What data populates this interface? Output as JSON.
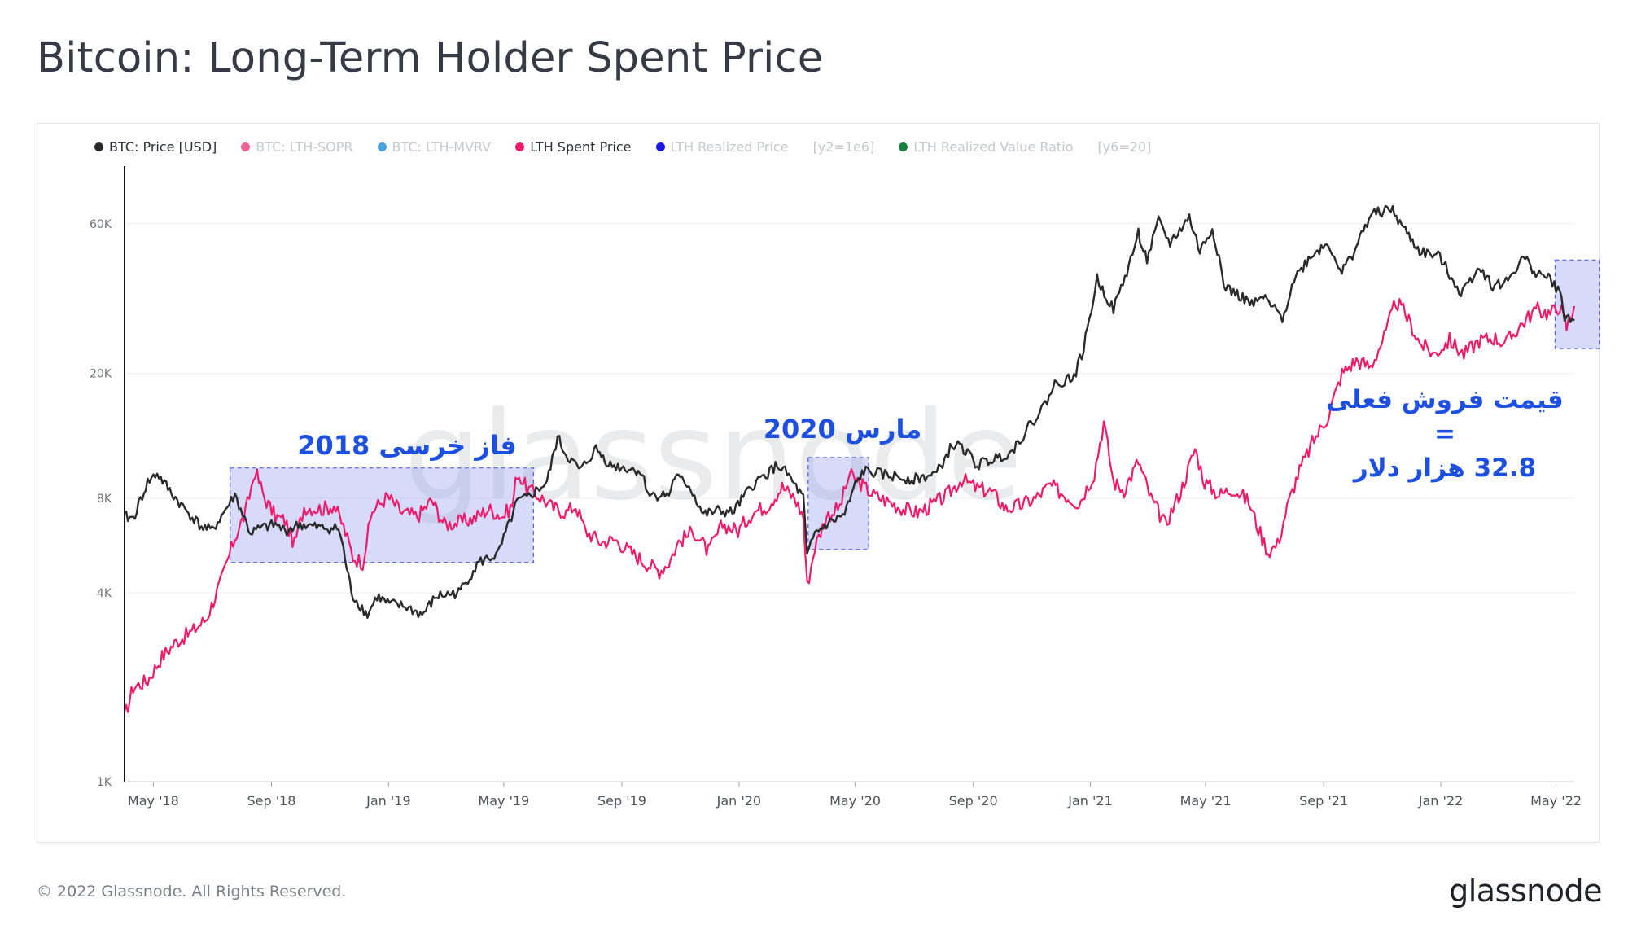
{
  "title": "Bitcoin: Long-Term Holder Spent Price",
  "legend": [
    {
      "label": "BTC: Price [USD]",
      "color": "#2b2b2b",
      "active": true
    },
    {
      "label": "BTC: LTH-SOPR",
      "color": "#f06292",
      "active": false
    },
    {
      "label": "BTC: LTH-MVRV",
      "color": "#4aa3df",
      "active": false
    },
    {
      "label": "LTH Spent Price",
      "color": "#ee1b6a",
      "active": true
    },
    {
      "label": "LTH Realized Price",
      "color": "#1a1ae6",
      "active": false
    },
    {
      "label": "[y2=1e6]",
      "color": "",
      "active": false,
      "tag": true
    },
    {
      "label": "LTH Realized Value Ratio",
      "color": "#17803a",
      "active": false
    },
    {
      "label": "[y6=20]",
      "color": "",
      "active": false,
      "tag": true
    }
  ],
  "annotations": {
    "bear_phase": "فاز خرسی 2018",
    "march_2020": "مارس 2020",
    "current_line1": "قیمت فروش فعلی",
    "current_line2": "=",
    "current_line3": "32.8 هزار دلار"
  },
  "watermark": "glassnode",
  "footer": {
    "copyright": "© 2022 Glassnode. All Rights Reserved.",
    "logo": "glassnode"
  },
  "chart_data": {
    "type": "line",
    "title": "Bitcoin: Long-Term Holder Spent Price",
    "y_scale": "log",
    "ylim": [
      1000,
      90000
    ],
    "y_ticks": [
      {
        "value": 1000,
        "label": "1K"
      },
      {
        "value": 4000,
        "label": "4K"
      },
      {
        "value": 8000,
        "label": "8K"
      },
      {
        "value": 20000,
        "label": "20K"
      },
      {
        "value": 60000,
        "label": "60K"
      }
    ],
    "xlim": [
      "2018-04-01",
      "2022-05-20"
    ],
    "x_ticks": [
      {
        "date": "2018-05-01",
        "label": "May '18"
      },
      {
        "date": "2018-09-01",
        "label": "Sep '18"
      },
      {
        "date": "2019-01-01",
        "label": "Jan '19"
      },
      {
        "date": "2019-05-01",
        "label": "May '19"
      },
      {
        "date": "2019-09-01",
        "label": "Sep '19"
      },
      {
        "date": "2020-01-01",
        "label": "Jan '20"
      },
      {
        "date": "2020-05-01",
        "label": "May '20"
      },
      {
        "date": "2020-09-01",
        "label": "Sep '20"
      },
      {
        "date": "2021-01-01",
        "label": "Jan '21"
      },
      {
        "date": "2021-05-01",
        "label": "May '21"
      },
      {
        "date": "2021-09-01",
        "label": "Sep '21"
      },
      {
        "date": "2022-01-01",
        "label": "Jan '22"
      },
      {
        "date": "2022-05-01",
        "label": "May '22"
      }
    ],
    "series": [
      {
        "name": "BTC: Price [USD]",
        "color": "#2b2b2b",
        "points": [
          [
            "2018-04-01",
            7000
          ],
          [
            "2018-04-10",
            6900
          ],
          [
            "2018-04-25",
            9000
          ],
          [
            "2018-05-05",
            9600
          ],
          [
            "2018-05-20",
            8300
          ],
          [
            "2018-06-01",
            7500
          ],
          [
            "2018-06-20",
            6500
          ],
          [
            "2018-07-01",
            6300
          ],
          [
            "2018-07-25",
            8200
          ],
          [
            "2018-08-10",
            6200
          ],
          [
            "2018-08-20",
            6400
          ],
          [
            "2018-09-05",
            6600
          ],
          [
            "2018-09-15",
            6300
          ],
          [
            "2018-10-01",
            6600
          ],
          [
            "2018-10-20",
            6450
          ],
          [
            "2018-11-10",
            6400
          ],
          [
            "2018-11-15",
            5500
          ],
          [
            "2018-11-20",
            4500
          ],
          [
            "2018-11-25",
            3900
          ],
          [
            "2018-12-10",
            3400
          ],
          [
            "2018-12-20",
            3900
          ],
          [
            "2018-12-31",
            3700
          ],
          [
            "2019-01-20",
            3600
          ],
          [
            "2019-02-05",
            3400
          ],
          [
            "2019-02-20",
            3900
          ],
          [
            "2019-03-15",
            4000
          ],
          [
            "2019-04-05",
            5000
          ],
          [
            "2019-04-25",
            5300
          ],
          [
            "2019-05-15",
            7800
          ],
          [
            "2019-05-25",
            8000
          ],
          [
            "2019-06-15",
            9000
          ],
          [
            "2019-06-26",
            12500
          ],
          [
            "2019-07-05",
            11000
          ],
          [
            "2019-07-20",
            9800
          ],
          [
            "2019-08-05",
            11500
          ],
          [
            "2019-08-20",
            10200
          ],
          [
            "2019-09-20",
            9800
          ],
          [
            "2019-09-30",
            8200
          ],
          [
            "2019-10-20",
            8200
          ],
          [
            "2019-10-26",
            9400
          ],
          [
            "2019-11-10",
            8800
          ],
          [
            "2019-11-25",
            7100
          ],
          [
            "2019-12-10",
            7300
          ],
          [
            "2019-12-25",
            7200
          ],
          [
            "2020-01-15",
            8800
          ],
          [
            "2020-02-10",
            10200
          ],
          [
            "2020-02-20",
            9600
          ],
          [
            "2020-03-08",
            8000
          ],
          [
            "2020-03-12",
            5200
          ],
          [
            "2020-03-20",
            6200
          ],
          [
            "2020-04-01",
            6600
          ],
          [
            "2020-04-20",
            7100
          ],
          [
            "2020-05-01",
            8800
          ],
          [
            "2020-05-10",
            9800
          ],
          [
            "2020-06-01",
            9500
          ],
          [
            "2020-07-01",
            9200
          ],
          [
            "2020-07-25",
            9600
          ],
          [
            "2020-08-10",
            11800
          ],
          [
            "2020-08-20",
            11700
          ],
          [
            "2020-09-05",
            10200
          ],
          [
            "2020-10-10",
            11200
          ],
          [
            "2020-10-25",
            13000
          ],
          [
            "2020-11-15",
            16000
          ],
          [
            "2020-11-25",
            18500
          ],
          [
            "2020-12-15",
            19500
          ],
          [
            "2020-12-25",
            24000
          ],
          [
            "2021-01-08",
            40000
          ],
          [
            "2021-01-25",
            32000
          ],
          [
            "2021-02-10",
            44000
          ],
          [
            "2021-02-20",
            56000
          ],
          [
            "2021-03-01",
            46000
          ],
          [
            "2021-03-13",
            61000
          ],
          [
            "2021-03-25",
            52000
          ],
          [
            "2021-04-14",
            63000
          ],
          [
            "2021-04-25",
            49000
          ],
          [
            "2021-05-08",
            58000
          ],
          [
            "2021-05-15",
            47000
          ],
          [
            "2021-05-20",
            38000
          ],
          [
            "2021-06-01",
            36000
          ],
          [
            "2021-06-20",
            33000
          ],
          [
            "2021-06-30",
            35000
          ],
          [
            "2021-07-20",
            30000
          ],
          [
            "2021-08-01",
            40000
          ],
          [
            "2021-08-20",
            48000
          ],
          [
            "2021-09-06",
            52000
          ],
          [
            "2021-09-20",
            42000
          ],
          [
            "2021-10-01",
            48000
          ],
          [
            "2021-10-20",
            64000
          ],
          [
            "2021-11-10",
            67000
          ],
          [
            "2021-11-25",
            57000
          ],
          [
            "2021-12-10",
            49000
          ],
          [
            "2021-12-31",
            47000
          ],
          [
            "2022-01-22",
            36000
          ],
          [
            "2022-02-10",
            44000
          ],
          [
            "2022-02-24",
            38000
          ],
          [
            "2022-03-10",
            39000
          ],
          [
            "2022-03-28",
            47000
          ],
          [
            "2022-04-10",
            42000
          ],
          [
            "2022-04-25",
            40000
          ],
          [
            "2022-05-05",
            36000
          ],
          [
            "2022-05-10",
            30500
          ],
          [
            "2022-05-20",
            29500
          ]
        ]
      },
      {
        "name": "LTH Spent Price",
        "color": "#ee1b6a",
        "points": [
          [
            "2018-04-01",
            1600
          ],
          [
            "2018-04-10",
            2000
          ],
          [
            "2018-04-25",
            2100
          ],
          [
            "2018-05-10",
            2500
          ],
          [
            "2018-05-25",
            2800
          ],
          [
            "2018-06-10",
            3000
          ],
          [
            "2018-06-25",
            3300
          ],
          [
            "2018-07-10",
            4300
          ],
          [
            "2018-07-25",
            6000
          ],
          [
            "2018-08-05",
            7200
          ],
          [
            "2018-08-15",
            9800
          ],
          [
            "2018-08-25",
            8000
          ],
          [
            "2018-09-05",
            7000
          ],
          [
            "2018-09-15",
            6800
          ],
          [
            "2018-09-25",
            5700
          ],
          [
            "2018-10-05",
            7500
          ],
          [
            "2018-10-25",
            7400
          ],
          [
            "2018-11-05",
            7600
          ],
          [
            "2018-11-15",
            6500
          ],
          [
            "2018-11-25",
            5200
          ],
          [
            "2018-12-05",
            5000
          ],
          [
            "2018-12-15",
            7300
          ],
          [
            "2018-12-31",
            8100
          ],
          [
            "2019-01-15",
            7200
          ],
          [
            "2019-01-31",
            7000
          ],
          [
            "2019-02-15",
            7900
          ],
          [
            "2019-02-28",
            6600
          ],
          [
            "2019-03-15",
            6700
          ],
          [
            "2019-03-31",
            6900
          ],
          [
            "2019-04-15",
            7400
          ],
          [
            "2019-04-30",
            7000
          ],
          [
            "2019-05-10",
            7600
          ],
          [
            "2019-05-15",
            9700
          ],
          [
            "2019-05-25",
            8600
          ],
          [
            "2019-06-10",
            8000
          ],
          [
            "2019-06-20",
            7500
          ],
          [
            "2019-07-05",
            7200
          ],
          [
            "2019-07-15",
            7600
          ],
          [
            "2019-07-25",
            6300
          ],
          [
            "2019-08-10",
            5800
          ],
          [
            "2019-08-25",
            5900
          ],
          [
            "2019-09-10",
            5400
          ],
          [
            "2019-09-25",
            5000
          ],
          [
            "2019-10-10",
            4700
          ],
          [
            "2019-10-20",
            5000
          ],
          [
            "2019-10-30",
            5800
          ],
          [
            "2019-11-15",
            6300
          ],
          [
            "2019-11-30",
            5400
          ],
          [
            "2019-12-15",
            6600
          ],
          [
            "2019-12-31",
            6300
          ],
          [
            "2020-01-15",
            7200
          ],
          [
            "2020-01-31",
            7600
          ],
          [
            "2020-02-15",
            8700
          ],
          [
            "2020-02-28",
            8000
          ],
          [
            "2020-03-08",
            7000
          ],
          [
            "2020-03-12",
            4200
          ],
          [
            "2020-03-20",
            5600
          ],
          [
            "2020-04-01",
            7000
          ],
          [
            "2020-04-15",
            7500
          ],
          [
            "2020-04-25",
            9500
          ],
          [
            "2020-05-05",
            9000
          ],
          [
            "2020-05-20",
            8200
          ],
          [
            "2020-06-05",
            7800
          ],
          [
            "2020-06-20",
            7400
          ],
          [
            "2020-07-05",
            7200
          ],
          [
            "2020-07-20",
            7600
          ],
          [
            "2020-08-05",
            8200
          ],
          [
            "2020-08-20",
            9200
          ],
          [
            "2020-09-05",
            8600
          ],
          [
            "2020-09-20",
            8400
          ],
          [
            "2020-10-05",
            7400
          ],
          [
            "2020-10-20",
            7600
          ],
          [
            "2020-11-05",
            8000
          ],
          [
            "2020-11-20",
            8800
          ],
          [
            "2020-12-05",
            8200
          ],
          [
            "2020-12-20",
            7700
          ],
          [
            "2021-01-05",
            9600
          ],
          [
            "2021-01-15",
            14000
          ],
          [
            "2021-01-25",
            9000
          ],
          [
            "2021-02-05",
            8500
          ],
          [
            "2021-02-20",
            10500
          ],
          [
            "2021-03-05",
            8000
          ],
          [
            "2021-03-20",
            6600
          ],
          [
            "2021-04-05",
            8400
          ],
          [
            "2021-04-20",
            11500
          ],
          [
            "2021-04-30",
            9000
          ],
          [
            "2021-05-15",
            8200
          ],
          [
            "2021-05-30",
            8600
          ],
          [
            "2021-06-15",
            7800
          ],
          [
            "2021-06-25",
            6400
          ],
          [
            "2021-07-05",
            5400
          ],
          [
            "2021-07-15",
            5700
          ],
          [
            "2021-07-25",
            7500
          ],
          [
            "2021-08-05",
            9500
          ],
          [
            "2021-08-20",
            12000
          ],
          [
            "2021-09-05",
            14500
          ],
          [
            "2021-09-20",
            20000
          ],
          [
            "2021-10-05",
            22000
          ],
          [
            "2021-10-20",
            21000
          ],
          [
            "2021-11-05",
            27000
          ],
          [
            "2021-11-15",
            34000
          ],
          [
            "2021-11-25",
            31000
          ],
          [
            "2021-12-10",
            25000
          ],
          [
            "2021-12-25",
            23000
          ],
          [
            "2022-01-10",
            25500
          ],
          [
            "2022-01-25",
            23000
          ],
          [
            "2022-02-10",
            25500
          ],
          [
            "2022-02-25",
            26000
          ],
          [
            "2022-03-10",
            25000
          ],
          [
            "2022-03-25",
            28500
          ],
          [
            "2022-04-10",
            32000
          ],
          [
            "2022-04-25",
            31000
          ],
          [
            "2022-05-05",
            33000
          ],
          [
            "2022-05-12",
            28000
          ],
          [
            "2022-05-20",
            32800
          ]
        ]
      }
    ],
    "highlight_regions": [
      {
        "label": "bear_phase",
        "x": [
          "2018-07-20",
          "2019-06-01"
        ],
        "y": [
          5000,
          10000
        ]
      },
      {
        "label": "march_2020",
        "x": [
          "2020-03-13",
          "2020-05-15"
        ],
        "y": [
          5500,
          10800
        ]
      },
      {
        "label": "current",
        "x": [
          "2022-04-30",
          "2022-06-15"
        ],
        "y": [
          24000,
          46000
        ]
      }
    ]
  }
}
